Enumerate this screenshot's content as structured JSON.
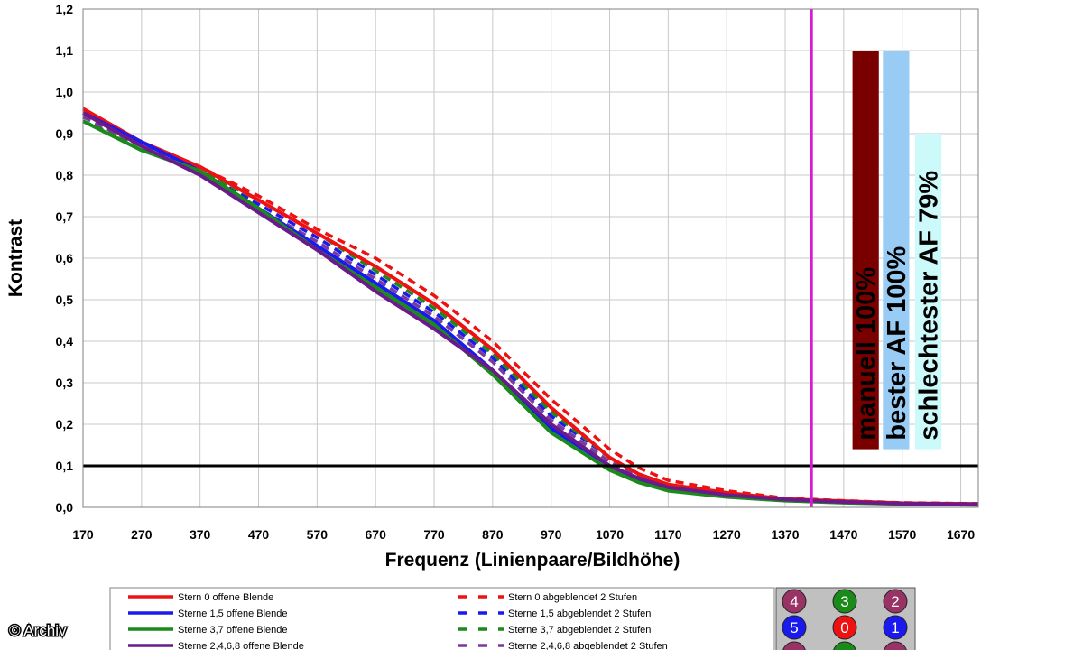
{
  "chart_data": {
    "type": "line",
    "title": "",
    "xlabel": "Frequenz (Linienpaare/Bildhöhe)",
    "ylabel": "Kontrast",
    "xlim": [
      170,
      1700
    ],
    "ylim": [
      0,
      1.2
    ],
    "xticks": [
      "170",
      "270",
      "370",
      "470",
      "570",
      "670",
      "770",
      "870",
      "970",
      "1070",
      "1170",
      "1270",
      "1370",
      "1470",
      "1570",
      "1670"
    ],
    "yticks": [
      "0,0",
      "0,1",
      "0,2",
      "0,3",
      "0,4",
      "0,5",
      "0,6",
      "0,7",
      "0,8",
      "0,9",
      "1,0",
      "1,1",
      "1,2"
    ],
    "grid": true,
    "series": [
      {
        "name": "Stern 0 offene Blende",
        "color": "#ee1111",
        "dash": false,
        "x": [
          170,
          270,
          370,
          470,
          570,
          670,
          770,
          870,
          970,
          1070,
          1120,
          1170,
          1270,
          1370,
          1470,
          1570,
          1700
        ],
        "y": [
          0.96,
          0.88,
          0.82,
          0.74,
          0.66,
          0.58,
          0.49,
          0.38,
          0.24,
          0.12,
          0.08,
          0.055,
          0.035,
          0.02,
          0.015,
          0.01,
          0.008
        ]
      },
      {
        "name": "Sterne 1,5 offene Blende",
        "color": "#1a1aee",
        "dash": false,
        "x": [
          170,
          270,
          370,
          470,
          570,
          670,
          770,
          870,
          970,
          1070,
          1120,
          1170,
          1270,
          1370,
          1470,
          1570,
          1700
        ],
        "y": [
          0.95,
          0.88,
          0.81,
          0.72,
          0.63,
          0.54,
          0.45,
          0.33,
          0.19,
          0.1,
          0.065,
          0.045,
          0.028,
          0.018,
          0.012,
          0.009,
          0.007
        ]
      },
      {
        "name": "Sterne 3,7 offene Blende",
        "color": "#1a8a1a",
        "dash": false,
        "x": [
          170,
          270,
          370,
          470,
          570,
          670,
          770,
          870,
          970,
          1070,
          1120,
          1170,
          1270,
          1370,
          1470,
          1570,
          1700
        ],
        "y": [
          0.93,
          0.86,
          0.81,
          0.72,
          0.62,
          0.53,
          0.44,
          0.32,
          0.18,
          0.09,
          0.06,
          0.04,
          0.025,
          0.016,
          0.011,
          0.008,
          0.006
        ]
      },
      {
        "name": "Sterne 2,4,6,8 offene Blende",
        "color": "#6a1a8a",
        "dash": false,
        "x": [
          170,
          270,
          370,
          470,
          570,
          670,
          770,
          870,
          970,
          1070,
          1120,
          1170,
          1270,
          1370,
          1470,
          1570,
          1700
        ],
        "y": [
          0.95,
          0.87,
          0.8,
          0.71,
          0.62,
          0.52,
          0.43,
          0.33,
          0.2,
          0.1,
          0.07,
          0.048,
          0.03,
          0.019,
          0.013,
          0.009,
          0.007
        ]
      },
      {
        "name": "Stern 0 abgeblendet 2 Stufen",
        "color": "#ee1111",
        "dash": true,
        "x": [
          170,
          270,
          370,
          470,
          570,
          670,
          770,
          870,
          970,
          1070,
          1120,
          1170,
          1270,
          1370,
          1470,
          1570,
          1700
        ],
        "y": [
          0.95,
          0.88,
          0.82,
          0.75,
          0.67,
          0.6,
          0.51,
          0.4,
          0.26,
          0.14,
          0.095,
          0.065,
          0.04,
          0.022,
          0.016,
          0.011,
          0.009
        ]
      },
      {
        "name": "Sterne 1,5 abgeblendet 2 Stufen",
        "color": "#1a1aee",
        "dash": true,
        "x": [
          170,
          270,
          370,
          470,
          570,
          670,
          770,
          870,
          970,
          1070,
          1120,
          1170,
          1270,
          1370,
          1470,
          1570,
          1700
        ],
        "y": [
          0.94,
          0.88,
          0.81,
          0.73,
          0.65,
          0.56,
          0.47,
          0.36,
          0.22,
          0.12,
          0.08,
          0.055,
          0.033,
          0.02,
          0.014,
          0.01,
          0.008
        ]
      },
      {
        "name": "Sterne 3,7 abgeblendet 2 Stufen",
        "color": "#1a8a1a",
        "dash": true,
        "x": [
          170,
          270,
          370,
          470,
          570,
          670,
          770,
          870,
          970,
          1070,
          1120,
          1170,
          1270,
          1370,
          1470,
          1570,
          1700
        ],
        "y": [
          0.93,
          0.87,
          0.81,
          0.74,
          0.66,
          0.57,
          0.48,
          0.37,
          0.23,
          0.12,
          0.08,
          0.055,
          0.033,
          0.02,
          0.014,
          0.01,
          0.008
        ]
      },
      {
        "name": "Sterne 2,4,6,8 abgeblendet 2 Stufen",
        "color": "#7a3a9a",
        "dash": true,
        "x": [
          170,
          270,
          370,
          470,
          570,
          670,
          770,
          870,
          970,
          1070,
          1120,
          1170,
          1270,
          1370,
          1470,
          1570,
          1700
        ],
        "y": [
          0.94,
          0.87,
          0.8,
          0.72,
          0.64,
          0.55,
          0.46,
          0.35,
          0.21,
          0.11,
          0.075,
          0.05,
          0.03,
          0.019,
          0.013,
          0.009,
          0.007
        ]
      }
    ],
    "reference_lines": [
      {
        "orientation": "horizontal",
        "value": 0.1,
        "color": "#000000"
      },
      {
        "orientation": "vertical",
        "value": 1415,
        "color": "#d81ad8"
      }
    ],
    "bars": [
      {
        "label": "manuell 100%",
        "value": 1.1,
        "color": "#7a0000",
        "x_from": 1485,
        "x_to": 1530,
        "y_bottom": 0.14
      },
      {
        "label": "bester AF 100%",
        "value": 1.1,
        "color": "#99ccf5",
        "x_from": 1537,
        "x_to": 1582,
        "y_bottom": 0.14
      },
      {
        "label": "schlechtester AF 79%",
        "value": 0.9,
        "color": "#ccfafa",
        "x_from": 1592,
        "x_to": 1637,
        "y_bottom": 0.14
      }
    ],
    "legend_position": "bottom"
  },
  "position_badges": [
    {
      "label": "4",
      "color": "#993366"
    },
    {
      "label": "3",
      "color": "#1a8a1a"
    },
    {
      "label": "2",
      "color": "#993366"
    },
    {
      "label": "5",
      "color": "#1a1aee"
    },
    {
      "label": "0",
      "color": "#ee1111"
    },
    {
      "label": "1",
      "color": "#1a1aee"
    },
    {
      "label": "",
      "color": "#993366"
    },
    {
      "label": "",
      "color": "#1a8a1a"
    },
    {
      "label": "",
      "color": "#993366"
    }
  ],
  "credit": "© Archiv"
}
